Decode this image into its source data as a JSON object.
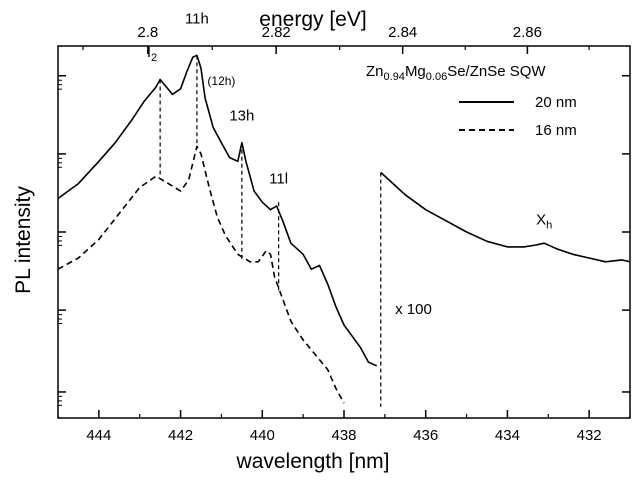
{
  "chart_data": {
    "type": "line",
    "title": "",
    "xlabel": "wavelength [nm]",
    "x2label": "energy [eV]",
    "ylabel": "PL intensity",
    "xlim": [
      445,
      431
    ],
    "x_ticks": [
      444,
      442,
      440,
      438,
      436,
      434,
      432
    ],
    "x_tick_labels": [
      "444",
      "442",
      "440",
      "438",
      "436",
      "434",
      "432"
    ],
    "x2_ticks": [
      2.8,
      2.82,
      2.84,
      2.86
    ],
    "x2_tick_labels": [
      "2.8",
      "2.82",
      "2.84",
      "2.86"
    ],
    "ylim": [
      0,
      1
    ],
    "y_scale": "log",
    "y_tick_labels_shown": false,
    "grid": false,
    "legend": {
      "placement": "top-right",
      "title_parts": [
        {
          "text": "Zn",
          "sub": false
        },
        {
          "text": "0.94",
          "sub": true
        },
        {
          "text": "Mg",
          "sub": false
        },
        {
          "text": "0.06",
          "sub": true
        },
        {
          "text": "Se/ZnSe SQW",
          "sub": false
        }
      ],
      "entries": [
        {
          "label": "20 nm",
          "style": "solid"
        },
        {
          "label": "16 nm",
          "style": "dashed"
        }
      ]
    },
    "series": [
      {
        "name": "20 nm",
        "style": "solid",
        "x": [
          445.0,
          444.5,
          444.0,
          443.6,
          443.2,
          442.9,
          442.6,
          442.5,
          442.35,
          442.2,
          442.0,
          441.85,
          441.7,
          441.6,
          441.5,
          441.4,
          441.2,
          441.0,
          440.8,
          440.6,
          440.5,
          440.4,
          440.2,
          440.0,
          439.8,
          439.65,
          439.5,
          439.3,
          439.0,
          438.8,
          438.6,
          438.4,
          438.2,
          438.0,
          437.8,
          437.6,
          437.4,
          437.2
        ],
        "values": [
          0.59,
          0.63,
          0.69,
          0.74,
          0.8,
          0.85,
          0.89,
          0.91,
          0.89,
          0.87,
          0.885,
          0.93,
          0.97,
          0.975,
          0.94,
          0.86,
          0.78,
          0.74,
          0.7,
          0.69,
          0.74,
          0.69,
          0.61,
          0.58,
          0.56,
          0.57,
          0.53,
          0.47,
          0.44,
          0.4,
          0.41,
          0.36,
          0.3,
          0.25,
          0.22,
          0.19,
          0.15,
          0.14
        ]
      },
      {
        "name": "16 nm",
        "style": "dashed",
        "x": [
          445.0,
          444.5,
          444.0,
          443.5,
          443.0,
          442.6,
          442.3,
          442.0,
          441.8,
          441.6,
          441.5,
          441.3,
          441.1,
          440.9,
          440.6,
          440.3,
          440.1,
          439.9,
          439.8,
          439.7,
          439.5,
          439.3,
          439.0,
          438.7,
          438.4,
          438.2,
          438.0
        ],
        "values": [
          0.4,
          0.43,
          0.48,
          0.55,
          0.62,
          0.65,
          0.63,
          0.61,
          0.64,
          0.73,
          0.71,
          0.62,
          0.54,
          0.49,
          0.44,
          0.42,
          0.42,
          0.45,
          0.44,
          0.38,
          0.32,
          0.26,
          0.21,
          0.17,
          0.13,
          0.08,
          0.04
        ]
      },
      {
        "name": "x 100",
        "style": "solid",
        "x": [
          437.1,
          436.8,
          436.5,
          436.0,
          435.5,
          435.0,
          434.5,
          434.0,
          433.6,
          433.3,
          433.1,
          432.8,
          432.4,
          432.0,
          431.6,
          431.2,
          431.0
        ],
        "values": [
          0.66,
          0.63,
          0.6,
          0.56,
          0.53,
          0.5,
          0.475,
          0.46,
          0.46,
          0.465,
          0.47,
          0.455,
          0.44,
          0.43,
          0.42,
          0.425,
          0.42
        ]
      }
    ],
    "markers": [
      {
        "x": 442.5,
        "y_top": 0.91,
        "y_bottom": 0.65,
        "style": "dashed"
      },
      {
        "x": 441.6,
        "y_top": 0.975,
        "y_bottom": 0.73,
        "style": "dashed"
      },
      {
        "x": 440.5,
        "y_top": 0.74,
        "y_bottom": 0.42,
        "style": "dashed"
      },
      {
        "x": 439.6,
        "y_top": 0.58,
        "y_bottom": 0.34,
        "style": "dashed"
      },
      {
        "x": 437.1,
        "y_top": 0.66,
        "y_bottom": 0.03,
        "style": "dashed"
      }
    ],
    "annotations": [
      {
        "text": "I",
        "sub": "2",
        "x": 442.7,
        "y": 0.97
      },
      {
        "text": "11h",
        "x": 441.6,
        "y": 1.06
      },
      {
        "text": "(12h)",
        "x": 441.0,
        "y": 0.895,
        "small": true
      },
      {
        "text": "13h",
        "x": 440.5,
        "y": 0.8
      },
      {
        "text": "11l",
        "x": 439.6,
        "y": 0.63
      },
      {
        "text": "x 100",
        "x": 436.3,
        "y": 0.28
      },
      {
        "text": "X",
        "sub": "h",
        "x": 433.1,
        "y": 0.52
      }
    ]
  }
}
